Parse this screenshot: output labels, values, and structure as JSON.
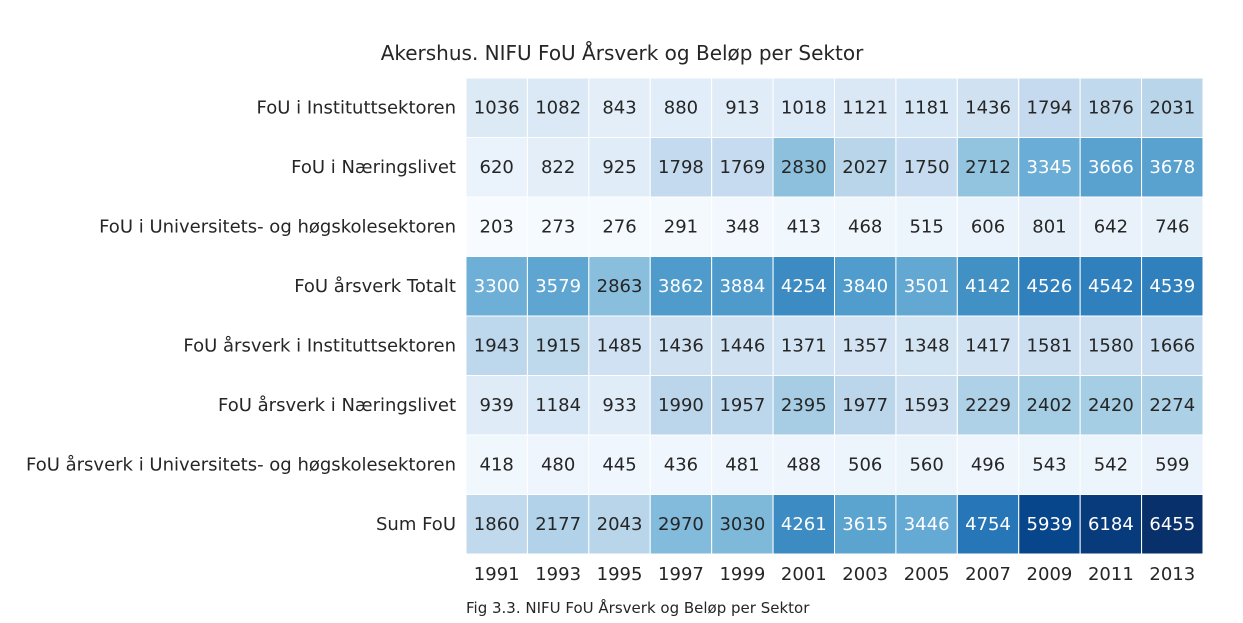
{
  "chart_data": {
    "type": "heatmap",
    "title": "Akershus. NIFU FoU Årsverk og Beløp per Sektor",
    "caption": "Fig 3.3. NIFU FoU Årsverk og Beløp per Sektor",
    "x": [
      "1991",
      "1993",
      "1995",
      "1997",
      "1999",
      "2001",
      "2003",
      "2005",
      "2007",
      "2009",
      "2011",
      "2013"
    ],
    "rows": [
      "FoU i Instituttsektoren",
      "FoU i Næringslivet",
      "FoU i Universitets- og høgskolesektoren",
      "FoU årsverk Totalt",
      "FoU årsverk i Instituttsektoren",
      "FoU årsverk i Næringslivet",
      "FoU årsverk i Universitets- og høgskolesektoren",
      "Sum FoU"
    ],
    "values": [
      [
        1036,
        1082,
        843,
        880,
        913,
        1018,
        1121,
        1181,
        1436,
        1794,
        1876,
        2031
      ],
      [
        620,
        822,
        925,
        1798,
        1769,
        2830,
        2027,
        1750,
        2712,
        3345,
        3666,
        3678
      ],
      [
        203,
        273,
        276,
        291,
        348,
        413,
        468,
        515,
        606,
        801,
        642,
        746
      ],
      [
        3300,
        3579,
        2863,
        3862,
        3884,
        4254,
        3840,
        3501,
        4142,
        4526,
        4542,
        4539
      ],
      [
        1943,
        1915,
        1485,
        1436,
        1446,
        1371,
        1357,
        1348,
        1417,
        1581,
        1580,
        1666
      ],
      [
        939,
        1184,
        933,
        1990,
        1957,
        2395,
        1977,
        1593,
        2229,
        2402,
        2420,
        2274
      ],
      [
        418,
        480,
        445,
        436,
        481,
        488,
        506,
        560,
        496,
        543,
        542,
        599
      ],
      [
        1860,
        2177,
        2043,
        2970,
        3030,
        4261,
        3615,
        3446,
        4754,
        5939,
        6184,
        6455
      ]
    ],
    "colormap": "Blues",
    "value_range": [
      203,
      6455
    ],
    "cell_border_color": "#ffffff",
    "legend": "none",
    "grid": false
  }
}
